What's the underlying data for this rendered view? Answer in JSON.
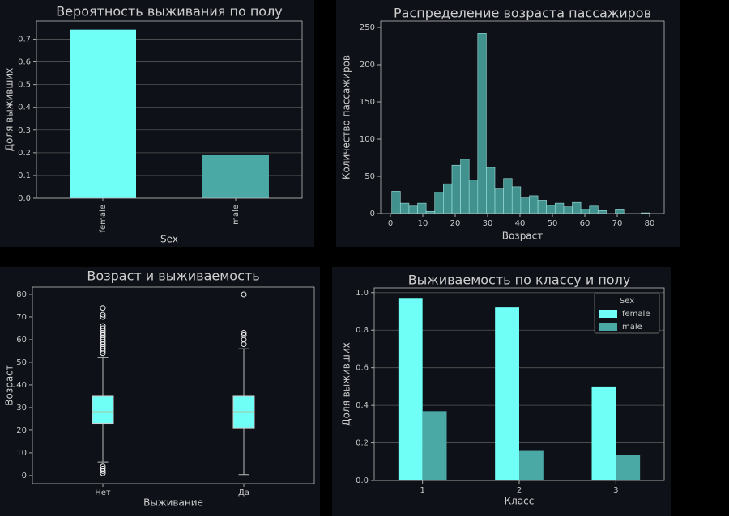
{
  "chart_data": [
    {
      "type": "bar",
      "title": "Вероятность выживания по полу",
      "xlabel": "Sex",
      "ylabel": "Доля выживших",
      "categories": [
        "female",
        "male"
      ],
      "values": [
        0.742,
        0.189
      ],
      "colors": [
        "#6ffff6",
        "#4aa8a5"
      ],
      "ylim": [
        0,
        0.78
      ],
      "yticks": [
        {
          "value": 0,
          "label": "0.0"
        },
        0.1,
        0.2,
        0.3,
        0.4,
        0.5,
        0.6,
        0.7
      ],
      "grid": true
    },
    {
      "type": "histogram",
      "title": "Распределение возраста пассажиров",
      "xlabel": "Возраст",
      "ylabel": "Количество пассажиров",
      "bins": [
        0.42,
        3.07,
        5.73,
        8.38,
        11.03,
        13.68,
        16.34,
        18.99,
        21.64,
        24.3,
        26.95,
        29.6,
        32.25,
        34.91,
        37.56,
        40.21,
        42.87,
        45.52,
        48.17,
        50.82,
        53.48,
        56.13,
        58.78,
        61.44,
        64.09,
        66.74,
        69.39,
        72.05,
        74.7,
        77.35,
        80.0
      ],
      "values": [
        30,
        14,
        10,
        14,
        3,
        29,
        40,
        65,
        73,
        45,
        242,
        62,
        33,
        47,
        36,
        21,
        24,
        18,
        11,
        14,
        9,
        15,
        6,
        10,
        4,
        0,
        5,
        0,
        0,
        1
      ],
      "color": "#4fb3ae",
      "xlim": [
        -3,
        84.5
      ],
      "xticks": [
        0,
        10,
        20,
        30,
        40,
        50,
        60,
        70,
        80
      ],
      "ylim": [
        0,
        258.7
      ],
      "yticks": [
        0,
        50,
        100,
        150,
        200,
        250
      ],
      "grid": false
    },
    {
      "type": "box",
      "title": "Возраст и выживаемость",
      "xlabel": "Выживание",
      "ylabel": "Возраст",
      "categories": [
        "Нет",
        "Да"
      ],
      "color": "#6ffff6",
      "median_color": "#e0904a",
      "boxes": [
        {
          "min": 6,
          "q1": 23,
          "median": 28,
          "q3": 35,
          "max": 52,
          "outliers": [
            1,
            2,
            3,
            4,
            54,
            55,
            56,
            57,
            58,
            59,
            60,
            61,
            62,
            63,
            64,
            65,
            66,
            70,
            71,
            74
          ]
        },
        {
          "min": 0.42,
          "q1": 21,
          "median": 28,
          "q3": 35,
          "max": 56,
          "outliers": [
            58,
            60,
            62,
            63,
            80
          ]
        }
      ],
      "ylim": [
        -3.6,
        83.2
      ],
      "yticks": [
        0,
        10,
        20,
        30,
        40,
        50,
        60,
        70,
        80
      ],
      "grid": false
    },
    {
      "type": "grouped_bar",
      "title": "Выживаемость по классу и полу",
      "xlabel": "Класс",
      "ylabel": "Доля выживших",
      "categories": [
        "1",
        "2",
        "3"
      ],
      "legend_title": "Sex",
      "legend": "upper right",
      "series": [
        {
          "name": "female",
          "color": "#6ffff6",
          "values": [
            0.968,
            0.921,
            0.5
          ]
        },
        {
          "name": "male",
          "color": "#4aa8a5",
          "values": [
            0.369,
            0.157,
            0.135
          ]
        }
      ],
      "ylim": [
        0,
        1.025
      ],
      "yticks": [
        {
          "value": 0,
          "label": "0.0"
        },
        0.2,
        0.4,
        0.6,
        0.8,
        {
          "value": 1,
          "label": "1.0"
        }
      ],
      "grid": true
    }
  ]
}
